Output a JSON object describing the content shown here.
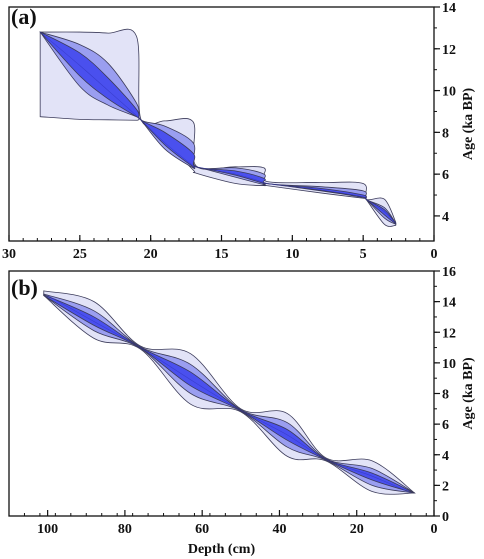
{
  "colors": {
    "band_outer": "#e2e3f7",
    "band_middle": "#9a9ef0",
    "band_inner": "#4a50ee",
    "band_stroke": "#3b3b5a",
    "axis": "#111111"
  },
  "chart_data": [
    {
      "panel_label": "(a)",
      "type": "area",
      "xlim": [
        30,
        0
      ],
      "ylim": [
        2.8,
        14
      ],
      "x_ticks": [
        30,
        25,
        20,
        15,
        10,
        5,
        0
      ],
      "y_ticks": [
        4,
        6,
        8,
        10,
        12,
        14
      ],
      "xlabel": "",
      "ylabel": "Age (ka BP)",
      "ylabel_side": "right",
      "median": {
        "x": [
          27.8,
          25,
          23,
          21,
          20.7,
          19,
          17,
          16.8,
          14,
          12,
          11.8,
          8,
          5,
          4.8,
          3.5,
          2.7
        ],
        "y": [
          12.8,
          11.2,
          10,
          8.8,
          8.6,
          7.5,
          6.4,
          6.35,
          6,
          5.6,
          5.55,
          5.25,
          4.9,
          4.8,
          4.2,
          3.65
        ]
      },
      "bands": [
        {
          "level": "outer",
          "x": [
            27.8,
            25,
            23,
            21,
            20.7,
            19,
            17,
            16.8,
            14,
            12,
            11.8,
            8,
            5,
            4.8,
            3.5,
            2.7
          ],
          "lower": [
            8.75,
            8.62,
            8.6,
            8.58,
            8.6,
            7.55,
            6.2,
            6.05,
            5.55,
            5.45,
            5.45,
            5.1,
            4.85,
            4.8,
            3.6,
            3.55
          ],
          "upper": [
            12.8,
            12.8,
            12.75,
            12.6,
            8.65,
            8.55,
            8.5,
            6.4,
            6.35,
            6.3,
            5.65,
            5.6,
            5.55,
            4.8,
            4.8,
            3.7
          ]
        },
        {
          "level": "middle",
          "x": [
            27.8,
            25,
            23,
            21,
            20.7,
            19,
            17,
            16.8,
            14,
            12,
            11.8,
            8,
            5,
            4.8,
            3.5,
            2.7
          ],
          "lower": [
            12.8,
            10.2,
            9.3,
            8.75,
            8.6,
            7.2,
            6.3,
            6.35,
            5.85,
            5.5,
            5.55,
            5.2,
            4.88,
            4.8,
            3.9,
            3.6
          ],
          "upper": [
            12.8,
            12.2,
            11.3,
            9.4,
            8.6,
            8.3,
            7.5,
            6.35,
            6.3,
            6.0,
            5.55,
            5.4,
            5.2,
            4.8,
            4.4,
            3.65
          ]
        },
        {
          "level": "inner",
          "x": [
            27.8,
            25,
            23,
            21,
            20.7,
            19,
            17,
            16.8,
            14,
            12,
            11.8,
            8,
            5,
            4.8,
            3.5,
            2.7
          ],
          "lower": [
            12.8,
            10.7,
            9.6,
            8.75,
            8.6,
            7.4,
            6.35,
            6.35,
            5.95,
            5.55,
            5.55,
            5.22,
            4.9,
            4.8,
            4.05,
            3.62
          ],
          "upper": [
            12.8,
            11.8,
            10.6,
            9.1,
            8.6,
            8.0,
            7.0,
            6.35,
            6.15,
            5.8,
            5.55,
            5.32,
            5.0,
            4.8,
            4.3,
            3.65
          ]
        }
      ]
    },
    {
      "panel_label": "(b)",
      "type": "area",
      "xlim": [
        110,
        0
      ],
      "ylim": [
        0,
        16
      ],
      "x_ticks": [
        100,
        80,
        60,
        40,
        20,
        0
      ],
      "y_ticks": [
        0,
        2,
        4,
        6,
        8,
        10,
        12,
        14,
        16
      ],
      "xlabel": "Depth (cm)",
      "ylabel": "Age (ka BP)",
      "ylabel_side": "right",
      "median": {
        "x": [
          100,
          88,
          76,
          63,
          50,
          38,
          28,
          16,
          6
        ],
        "y": [
          14.4,
          12.7,
          11.0,
          8.9,
          6.9,
          5.3,
          3.7,
          2.6,
          1.5
        ]
      },
      "bands": [
        {
          "level": "outer",
          "x": [
            101,
            88,
            76,
            63,
            50,
            38,
            28,
            16,
            5
          ],
          "lower": [
            14.4,
            11.6,
            10.9,
            7.3,
            6.8,
            3.9,
            3.6,
            1.6,
            1.5
          ],
          "upper": [
            14.7,
            14.0,
            11.1,
            10.6,
            7.0,
            6.7,
            3.8,
            3.6,
            1.5
          ]
        },
        {
          "level": "middle",
          "x": [
            101,
            88,
            76,
            63,
            50,
            38,
            28,
            16,
            5
          ],
          "lower": [
            14.4,
            12.1,
            10.95,
            8.0,
            6.85,
            4.5,
            3.65,
            2.0,
            1.5
          ],
          "upper": [
            14.5,
            13.4,
            11.05,
            9.9,
            6.95,
            6.1,
            3.75,
            3.1,
            1.5
          ]
        },
        {
          "level": "inner",
          "x": [
            101,
            88,
            76,
            63,
            50,
            38,
            28,
            16,
            5
          ],
          "lower": [
            14.4,
            12.45,
            10.98,
            8.5,
            6.88,
            4.95,
            3.68,
            2.35,
            1.5
          ],
          "upper": [
            14.45,
            13.0,
            11.02,
            9.4,
            6.92,
            5.65,
            3.72,
            2.8,
            1.5
          ]
        }
      ]
    }
  ]
}
